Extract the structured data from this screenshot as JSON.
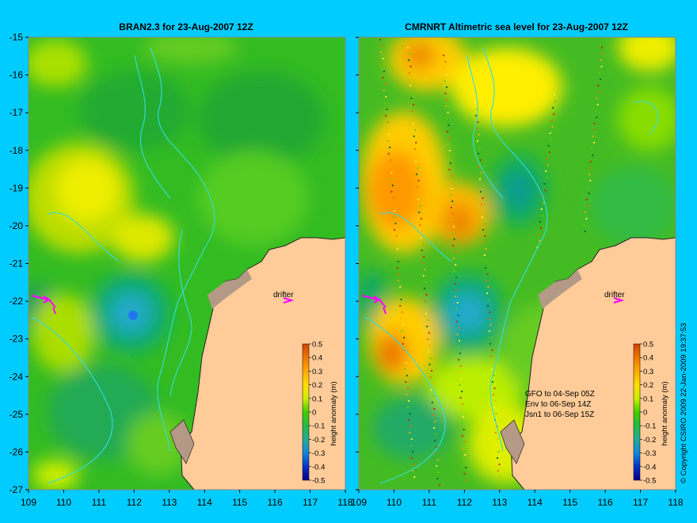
{
  "colors": {
    "background": "#00ccff",
    "land": "#ffcc99",
    "coast_grey": "#b49a86",
    "isobath": "#33dddd",
    "drifter": "#ff00ff"
  },
  "panels": [
    {
      "id": "bran",
      "title": "BRAN2.3 for 23-Aug-2007 12Z",
      "drifter_label": "drifter",
      "colorbar": {
        "label": "height anomaly (m)",
        "ticks": [
          "0.5",
          "0.4",
          "0.3",
          "0.2",
          "0.1",
          "0",
          "-0.1",
          "-0.2",
          "-0.3",
          "-0.4",
          "-0.5"
        ]
      }
    },
    {
      "id": "cmrnrt",
      "title": "CMRNRT Altimetric sea level  for 23-Aug-2007 12Z",
      "drifter_label": "drifter",
      "notes": [
        "GFO to 04-Sep 05Z",
        "Env to 06-Sep 14Z",
        "Jsn1 to 06-Sep 15Z"
      ],
      "colorbar": {
        "label": "height anomaly (m)",
        "ticks": [
          "0.5",
          "0.4",
          "0.3",
          "0.2",
          "0.1",
          "0",
          "-0.1",
          "-0.2",
          "-0.3",
          "-0.4",
          "-0.5"
        ]
      }
    }
  ],
  "axes": {
    "lat_labels": [
      "-15",
      "-16",
      "-17",
      "-18",
      "-19",
      "-20",
      "-21",
      "-22",
      "-23",
      "-24",
      "-25",
      "-26",
      "-27"
    ],
    "lon_labels": [
      "109",
      "110",
      "111",
      "112",
      "113",
      "114",
      "115",
      "116",
      "117",
      "118"
    ],
    "lat_range": [
      -27,
      -15
    ],
    "lon_range": [
      109,
      118
    ]
  },
  "copyright": "© Copyright CSIRO 2009   22-Jan-2009 19:37:53"
}
